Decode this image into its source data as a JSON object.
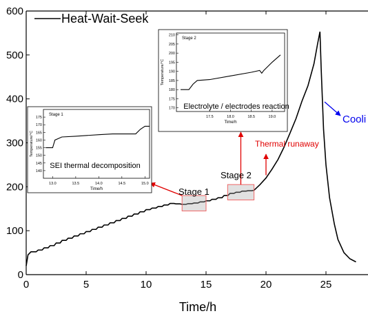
{
  "chart_data": {
    "type": "line",
    "xlabel": "Time/h",
    "ylabel": "",
    "xlim": [
      0,
      30
    ],
    "ylim": [
      0,
      600
    ],
    "x_ticks": [
      0,
      5,
      10,
      15,
      20,
      25
    ],
    "y_ticks": [
      0,
      100,
      200,
      300,
      400,
      500,
      600
    ],
    "legend": {
      "label": "Heat-Wait-Seek",
      "placement": "top-left"
    },
    "series": [
      {
        "name": "Heat-Wait-Seek",
        "color": "#000000",
        "x": [
          0,
          0.15,
          0.4,
          1,
          2,
          3,
          4,
          5,
          6,
          7,
          8,
          9,
          10,
          11,
          12,
          13,
          14,
          15,
          16,
          17,
          18,
          19,
          19.5,
          20,
          20.5,
          21,
          21.5,
          22,
          22.5,
          23,
          23.5,
          24,
          24.3,
          24.5,
          24.6,
          24.8,
          25,
          25.3,
          25.7,
          26,
          26.5,
          27,
          27.5
        ],
        "y": [
          20,
          45,
          52,
          56,
          66,
          78,
          88,
          98,
          108,
          118,
          128,
          138,
          148,
          155,
          162,
          160,
          163,
          168,
          175,
          185,
          190,
          192,
          205,
          220,
          240,
          262,
          290,
          322,
          355,
          395,
          430,
          480,
          525,
          553,
          470,
          330,
          250,
          175,
          115,
          80,
          50,
          36,
          29
        ]
      }
    ],
    "annotations": [
      {
        "text": "Stage 1",
        "color": "#000000"
      },
      {
        "text": "Stage 2",
        "color": "#000000"
      },
      {
        "text": "Thermal runaway",
        "color": "#e00000"
      },
      {
        "text": "Cooli",
        "color": "#0000ee"
      }
    ],
    "highlight_boxes": [
      {
        "name": "stage-1-box",
        "x": [
          13,
          15
        ],
        "y": [
          145,
          180
        ]
      },
      {
        "name": "stage-2-box",
        "x": [
          16.8,
          19
        ],
        "y": [
          170,
          205
        ]
      }
    ],
    "insets": [
      {
        "title": "Stage 1",
        "label": "SEI thermal decomposition",
        "xlabel": "Time/h",
        "ylabel": "Temperature/°C",
        "xlim": [
          12.8,
          15.1
        ],
        "ylim": [
          135,
          180
        ],
        "x_ticks": [
          "13.0",
          "13.5",
          "14.0",
          "14.5",
          "15.0"
        ],
        "y_ticks": [
          "140",
          "145",
          "150",
          "155",
          "160",
          "165",
          "170",
          "175"
        ],
        "x": [
          12.85,
          13.0,
          13.05,
          13.2,
          13.5,
          14.0,
          14.3,
          14.5,
          14.8,
          14.9,
          15.0,
          15.1
        ],
        "y": [
          155,
          155,
          160,
          162,
          162.5,
          163.5,
          164,
          164,
          164,
          167,
          169,
          169
        ]
      },
      {
        "title": "Stage 2",
        "label": "Electrolyte / electrodes reaction",
        "xlabel": "Time/h",
        "ylabel": "Temperature/°C",
        "xlim": [
          16.7,
          19.3
        ],
        "ylim": [
          168,
          211
        ],
        "x_ticks": [
          "17.5",
          "18.0",
          "18.5",
          "19.0"
        ],
        "y_ticks": [
          "170",
          "175",
          "180",
          "185",
          "190",
          "195",
          "200",
          "205",
          "210"
        ],
        "x": [
          16.8,
          17.0,
          17.1,
          17.2,
          17.5,
          18.0,
          18.5,
          18.7,
          18.75,
          18.8,
          19.0,
          19.2
        ],
        "y": [
          180,
          180,
          183,
          185,
          185.5,
          187.5,
          189.5,
          190.5,
          189,
          190.5,
          195,
          199
        ]
      }
    ]
  }
}
